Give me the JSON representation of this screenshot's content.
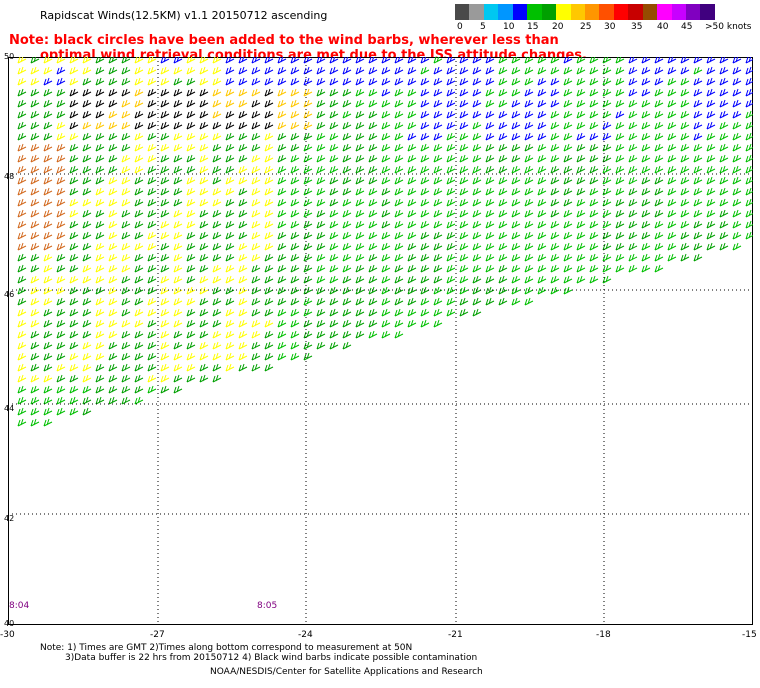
{
  "title": "Rapidscat Winds(12.5KM) v1.1 20150712 ascending",
  "note_line1": "Note: black circles have been added to the wind barbs, wherever less than",
  "note_line2": "optimal wind retrieval conditions are met due to the ISS attitude changes.",
  "legend": {
    "labels": [
      "0",
      "5",
      "10",
      "15",
      "20",
      "25",
      "30",
      "35",
      "40",
      "45",
      ">50 knots"
    ],
    "colors": [
      "#4a4a4a",
      "#9a9a9a",
      "#00c8f0",
      "#0096ff",
      "#0000ff",
      "#00c000",
      "#00a000",
      "#ffff00",
      "#ffc800",
      "#ff9600",
      "#ff5000",
      "#ff0000",
      "#c80000",
      "#964b00",
      "#ff00ff",
      "#c800ff",
      "#8000c0",
      "#40007f"
    ]
  },
  "map": {
    "lat_labels": [
      "50",
      "48",
      "46",
      "44",
      "42",
      "40"
    ],
    "lon_labels": [
      "-30",
      "-27",
      "-24",
      "-21",
      "-18",
      "-15"
    ],
    "time_labels": [
      "8:04",
      "8:05"
    ]
  },
  "footer": {
    "line1": "Note: 1) Times are GMT 2)Times along bottom correspond to measurement at 50N",
    "line2": "3)Data buffer is 22 hrs from 20150712 4) Black wind barbs indicate possible contamination",
    "line3": "NOAA/NESDIS/Center for Satellite Applications and Research"
  }
}
